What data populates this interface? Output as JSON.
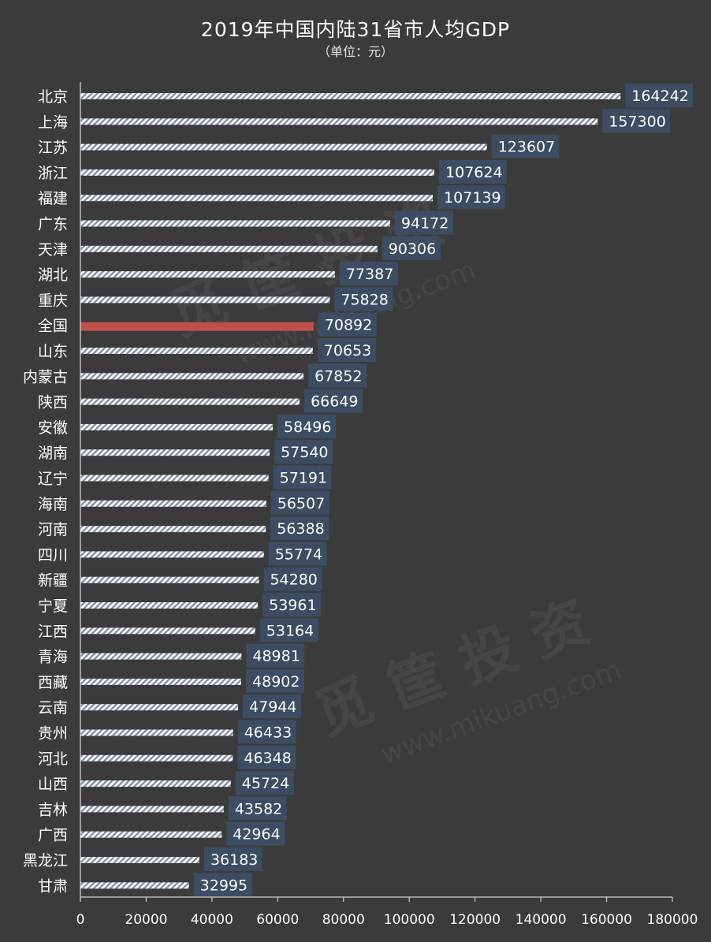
{
  "chart_data": {
    "type": "bar",
    "orientation": "horizontal",
    "title": "2019年中国内陆31省市人均GDP",
    "subtitle": "（单位：元）",
    "categories": [
      "北京",
      "上海",
      "江苏",
      "浙江",
      "福建",
      "广东",
      "天津",
      "湖北",
      "重庆",
      "全国",
      "山东",
      "内蒙古",
      "陕西",
      "安徽",
      "湖南",
      "辽宁",
      "海南",
      "河南",
      "四川",
      "新疆",
      "宁夏",
      "江西",
      "青海",
      "西藏",
      "云南",
      "贵州",
      "河北",
      "山西",
      "吉林",
      "广西",
      "黑龙江",
      "甘肃"
    ],
    "values": [
      164242,
      157300,
      123607,
      107624,
      107139,
      94172,
      90306,
      77387,
      75828,
      70892,
      70653,
      67852,
      66649,
      58496,
      57540,
      57191,
      56507,
      56388,
      55774,
      54280,
      53961,
      53164,
      48981,
      48902,
      47944,
      46433,
      46348,
      45724,
      43582,
      42964,
      36183,
      32995
    ],
    "highlight": "全国",
    "xlim": [
      0,
      180000
    ],
    "xticks": [
      0,
      20000,
      40000,
      60000,
      80000,
      100000,
      120000,
      140000,
      160000,
      180000
    ],
    "xlabel": "",
    "ylabel": "",
    "grid": false,
    "colors": {
      "bar": "#ffffff",
      "bar_stripe": "#7a8aa0",
      "highlight_bar": "#c0504d",
      "label_box": "#3c4d63",
      "background": "#3b3b3b"
    }
  }
}
